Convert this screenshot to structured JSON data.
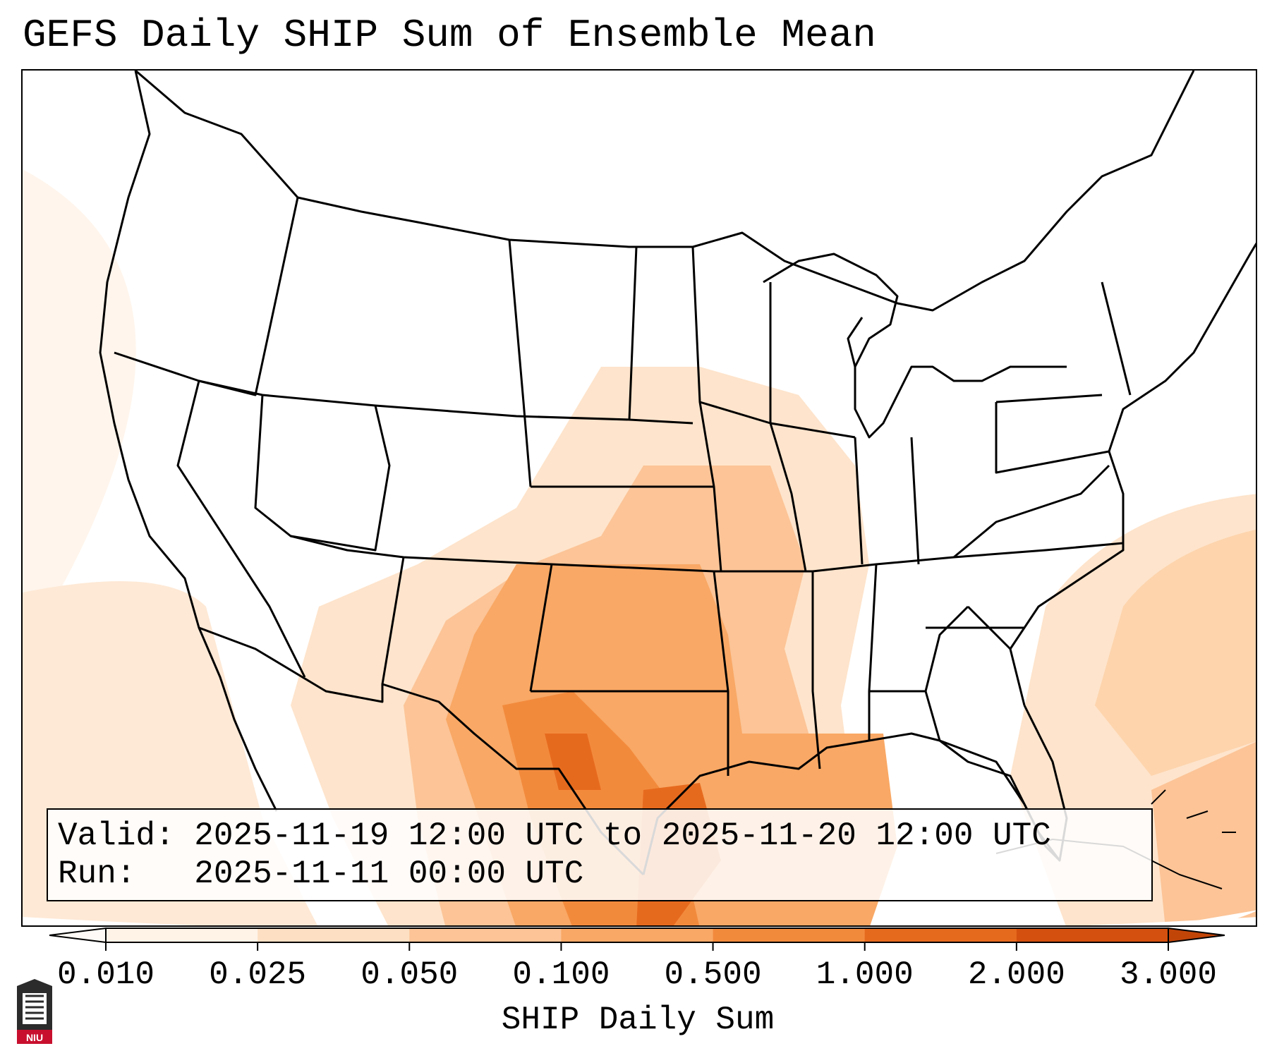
{
  "title": "GEFS Daily SHIP Sum of Ensemble Mean",
  "info": {
    "valid_label": "Valid:",
    "valid_value": "2025-11-19 12:00 UTC to 2025-11-20 12:00 UTC",
    "run_label": "Run:",
    "run_value": "2025-11-11 00:00 UTC"
  },
  "colorbar": {
    "title": "SHIP Daily Sum",
    "ticks": [
      "0.010",
      "0.025",
      "0.050",
      "0.100",
      "0.500",
      "1.000",
      "2.000",
      "3.000"
    ],
    "colors": [
      "#fff3e8",
      "#fde0c4",
      "#fcc497",
      "#f9a865",
      "#f28a3c",
      "#e66a1e",
      "#d4500e"
    ],
    "extend": "both"
  },
  "logo": {
    "text": "NIU",
    "color": "#c8102e"
  }
}
